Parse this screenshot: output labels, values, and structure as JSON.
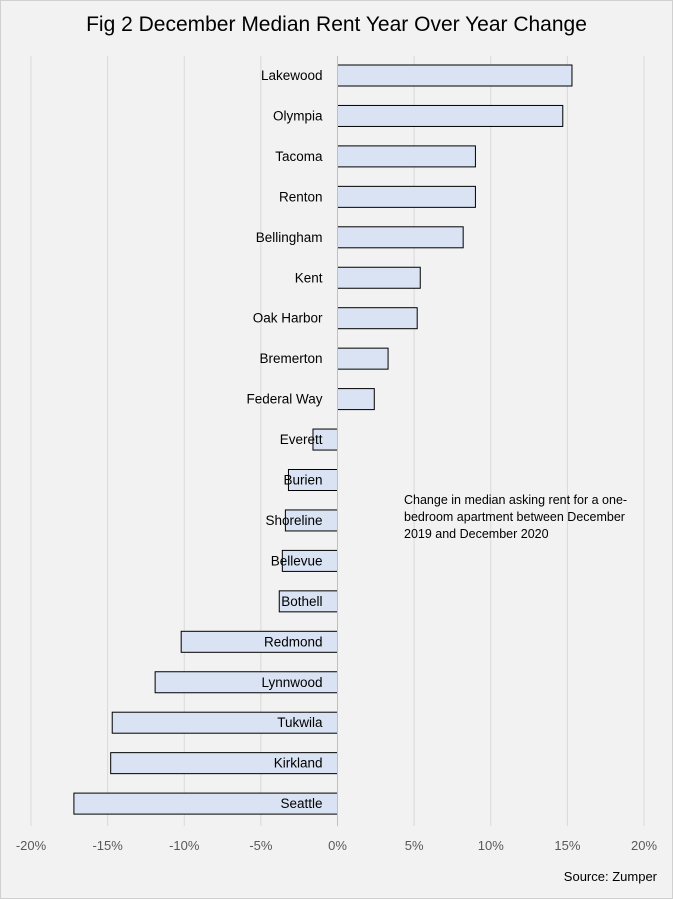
{
  "chart_data": {
    "type": "bar",
    "orientation": "horizontal",
    "title": "Fig 2 December Median Rent Year Over Year Change",
    "categories": [
      "Lakewood",
      "Olympia",
      "Tacoma",
      "Renton",
      "Bellingham",
      "Kent",
      "Oak Harbor",
      "Bremerton",
      "Federal Way",
      "Everett",
      "Burien",
      "Shoreline",
      "Bellevue",
      "Bothell",
      "Redmond",
      "Lynnwood",
      "Tukwila",
      "Kirkland",
      "Seattle"
    ],
    "values": [
      15.3,
      14.7,
      9.0,
      9.0,
      8.2,
      5.4,
      5.2,
      3.3,
      2.4,
      -1.6,
      -3.2,
      -3.4,
      -3.6,
      -3.8,
      -10.2,
      -11.9,
      -14.7,
      -14.8,
      -17.2
    ],
    "xlim": [
      -20,
      20
    ],
    "xticks": [
      -20,
      -15,
      -10,
      -5,
      0,
      5,
      10,
      15,
      20
    ],
    "xtick_labels": [
      "-20%",
      "-15%",
      "-10%",
      "-5%",
      "0%",
      "5%",
      "10%",
      "15%",
      "20%"
    ],
    "xlabel": "",
    "ylabel": "",
    "grid": "vertical",
    "bar_fill": "#dae3f3",
    "bar_stroke": "#000000",
    "annotation": "Change in median asking rent for a one-bedroom apartment between December 2019 and December 2020",
    "source": "Source: Zumper"
  }
}
